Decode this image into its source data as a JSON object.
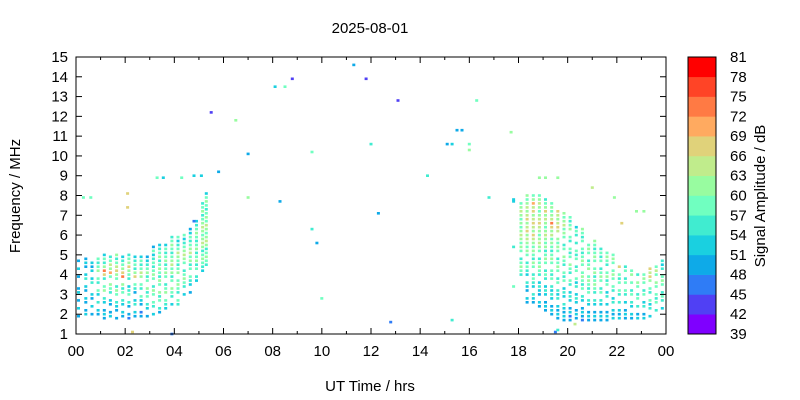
{
  "chart_data": {
    "type": "scatter",
    "title": "2025-08-01",
    "xlabel": "UT Time / hrs",
    "ylabel": "Frequency / MHz",
    "colorbar_label": "Signal Amplitude / dB",
    "xlim": [
      0,
      24
    ],
    "ylim": [
      1,
      15
    ],
    "x_tick_labels": [
      "00",
      "02",
      "04",
      "06",
      "08",
      "10",
      "12",
      "14",
      "16",
      "18",
      "20",
      "22",
      "00"
    ],
    "y_tick_labels": [
      "1",
      "2",
      "3",
      "4",
      "5",
      "6",
      "7",
      "8",
      "9",
      "10",
      "11",
      "12",
      "13",
      "14",
      "15"
    ],
    "colorbar": {
      "range": [
        39,
        81
      ],
      "step": 3,
      "tick_labels": [
        "39",
        "42",
        "45",
        "48",
        "51",
        "54",
        "57",
        "60",
        "63",
        "66",
        "69",
        "72",
        "75",
        "78",
        "81"
      ],
      "colors": [
        "#7f00ff",
        "#5040f4",
        "#2f7cf6",
        "#0eaae8",
        "#1ad0e0",
        "#40ecd0",
        "#70ffc0",
        "#98fca0",
        "#c0ec8c",
        "#e0d27a",
        "#ffaa60",
        "#ff7a44",
        "#ff4426",
        "#ff0000"
      ]
    },
    "column_freq_step": 0.2,
    "columns": [
      [
        0.1,
        1.9,
        [
          48,
          0,
          51,
          0,
          48,
          0,
          51,
          48,
          0,
          0,
          48,
          0,
          51,
          0,
          48
        ]
      ],
      [
        0.4,
        2.0,
        [
          51,
          48,
          0,
          48,
          51,
          0,
          48,
          51,
          0,
          54,
          51,
          0,
          48,
          51,
          48
        ]
      ],
      [
        0.65,
        2.0,
        [
          48,
          0,
          51,
          0,
          48,
          51,
          0,
          0,
          54,
          51,
          0,
          51,
          48,
          51
        ]
      ],
      [
        0.9,
        2.0,
        [
          48,
          51,
          0,
          54,
          0,
          51,
          57,
          0,
          54,
          57,
          0,
          60,
          57,
          54,
          57
        ]
      ],
      [
        1.15,
        1.8,
        [
          48,
          51,
          48,
          0,
          51,
          54,
          0,
          60,
          57,
          0,
          54,
          66,
          72,
          60,
          54,
          57,
          51
        ]
      ],
      [
        1.4,
        1.9,
        [
          51,
          48,
          0,
          48,
          51,
          0,
          54,
          57,
          60,
          0,
          57,
          69,
          60,
          63,
          57,
          54
        ]
      ],
      [
        1.65,
        1.8,
        [
          48,
          0,
          48,
          51,
          54,
          0,
          57,
          60,
          54,
          0,
          57,
          60,
          66,
          63,
          57,
          54,
          60
        ]
      ],
      [
        1.9,
        1.9,
        [
          48,
          51,
          0,
          51,
          54,
          0,
          57,
          54,
          60,
          0,
          72,
          66,
          60,
          57,
          54,
          51
        ]
      ],
      [
        2.15,
        1.8,
        [
          45,
          48,
          0,
          48,
          54,
          0,
          57,
          54,
          51,
          0,
          54,
          57,
          60,
          66,
          60,
          57,
          54
        ]
      ],
      [
        2.4,
        1.9,
        [
          48,
          51,
          0,
          54,
          51,
          0,
          48,
          54,
          57,
          0,
          66,
          60,
          54,
          57,
          54,
          51
        ]
      ],
      [
        2.65,
        1.9,
        [
          48,
          45,
          0,
          48,
          51,
          57,
          0,
          54,
          57,
          0,
          60,
          63,
          57,
          54,
          57,
          51
        ]
      ],
      [
        2.9,
        1.9,
        [
          48,
          0,
          51,
          54,
          0,
          57,
          54,
          60,
          0,
          57,
          54,
          60,
          57,
          54,
          51,
          48
        ]
      ],
      [
        3.15,
        2.0,
        [
          51,
          0,
          54,
          57,
          0,
          57,
          60,
          54,
          0,
          57,
          60,
          57,
          54,
          57,
          54,
          51,
          57,
          48
        ]
      ],
      [
        3.4,
        2.1,
        [
          48,
          54,
          0,
          57,
          54,
          60,
          0,
          57,
          60,
          54,
          57,
          60,
          57,
          54,
          60,
          57,
          54,
          51
        ]
      ],
      [
        3.65,
        2.3,
        [
          51,
          54,
          57,
          0,
          60,
          57,
          54,
          0,
          57,
          60,
          57,
          54,
          60,
          57,
          54,
          57,
          51
        ]
      ],
      [
        3.9,
        2.5,
        [
          51,
          0,
          54,
          57,
          60,
          0,
          57,
          54,
          60,
          57,
          63,
          60,
          57,
          54,
          57,
          60,
          57,
          54
        ]
      ],
      [
        4.15,
        2.5,
        [
          54,
          57,
          0,
          54,
          57,
          60,
          57,
          0,
          60,
          57,
          54,
          57,
          60,
          63,
          57,
          54,
          51,
          57
        ]
      ],
      [
        4.4,
        3.0,
        [
          51,
          0,
          54,
          57,
          60,
          57,
          54,
          0,
          57,
          60,
          63,
          60,
          57,
          54,
          51,
          57
        ]
      ],
      [
        4.65,
        3.1,
        [
          48,
          0,
          51,
          54,
          57,
          0,
          57,
          54,
          60,
          57,
          63,
          60,
          57,
          54,
          57,
          51,
          48
        ]
      ],
      [
        4.9,
        3.7,
        [
          51,
          54,
          0,
          57,
          54,
          60,
          57,
          54,
          60,
          57,
          54,
          57,
          60,
          57,
          54,
          51
        ]
      ],
      [
        5.15,
        4.2,
        [
          51,
          54,
          57,
          60,
          57,
          54,
          60,
          63,
          60,
          57,
          60,
          63,
          60,
          57,
          54,
          60,
          57,
          54
        ]
      ],
      [
        5.3,
        4.5,
        [
          54,
          57,
          60,
          57,
          54,
          60,
          63,
          60,
          57,
          60,
          63,
          57,
          60,
          57,
          54,
          57,
          60,
          57,
          51
        ]
      ],
      [
        18.1,
        4.0,
        [
          54,
          57,
          60,
          57,
          54,
          0,
          57,
          60,
          57,
          60,
          63,
          60,
          57,
          60,
          57,
          60,
          63,
          60,
          57
        ]
      ],
      [
        18.35,
        2.6,
        [
          48,
          51,
          0,
          48,
          51,
          54,
          0,
          51,
          54,
          57,
          54,
          0,
          57,
          60,
          57,
          60,
          63,
          60,
          66,
          63,
          60,
          66,
          63,
          60,
          63,
          60,
          57,
          60
        ]
      ],
      [
        18.6,
        2.6,
        [
          48,
          51,
          54,
          0,
          51,
          54,
          57,
          54,
          0,
          57,
          60,
          54,
          57,
          60,
          57,
          60,
          63,
          66,
          60,
          63,
          66,
          63,
          60,
          66,
          63,
          69,
          60,
          57
        ]
      ],
      [
        18.85,
        2.4,
        [
          48,
          51,
          0,
          48,
          51,
          54,
          51,
          0,
          54,
          57,
          60,
          57,
          54,
          0,
          57,
          60,
          63,
          60,
          57,
          60,
          63,
          66,
          63,
          60,
          57,
          60,
          63,
          60,
          57
        ]
      ],
      [
        19.1,
        2.2,
        [
          48,
          51,
          48,
          0,
          51,
          54,
          51,
          0,
          54,
          57,
          54,
          0,
          57,
          60,
          57,
          54,
          60,
          57,
          60,
          63,
          60,
          57,
          60,
          63,
          60,
          66,
          60,
          57,
          54
        ]
      ],
      [
        19.35,
        2.0,
        [
          48,
          51,
          48,
          0,
          51,
          54,
          51,
          54,
          0,
          57,
          54,
          57,
          0,
          57,
          60,
          57,
          54,
          57,
          60,
          57,
          63,
          60,
          66,
          72,
          63,
          60,
          57,
          60,
          57
        ]
      ],
      [
        19.6,
        1.8,
        [
          48,
          51,
          48,
          51,
          0,
          54,
          51,
          54,
          0,
          57,
          54,
          0,
          57,
          60,
          57,
          54,
          0,
          57,
          60,
          57,
          60,
          0,
          63,
          66,
          63,
          60,
          63,
          66
        ]
      ],
      [
        19.85,
        1.7,
        [
          48,
          51,
          48,
          51,
          54,
          0,
          51,
          54,
          51,
          0,
          57,
          54,
          57,
          0,
          54,
          57,
          60,
          0,
          57,
          54,
          0,
          57,
          60,
          57,
          63,
          60,
          57,
          60
        ]
      ],
      [
        20.1,
        1.7,
        [
          48,
          45,
          51,
          48,
          0,
          51,
          54,
          51,
          0,
          54,
          57,
          0,
          54,
          57,
          60,
          0,
          57,
          54,
          57,
          0,
          54,
          57,
          0,
          60,
          57,
          54,
          57
        ]
      ],
      [
        20.35,
        1.8,
        [
          48,
          51,
          48,
          0,
          51,
          54,
          51,
          0,
          54,
          51,
          57,
          0,
          57,
          54,
          0,
          57,
          54,
          57,
          0,
          54,
          0,
          54,
          57,
          51
        ]
      ],
      [
        20.6,
        1.7,
        [
          45,
          48,
          51,
          48,
          0,
          51,
          54,
          0,
          57,
          54,
          57,
          60,
          57,
          0,
          57,
          60,
          57,
          54,
          57,
          0,
          57,
          54,
          57,
          60
        ]
      ],
      [
        20.85,
        1.7,
        [
          48,
          51,
          48,
          0,
          51,
          54,
          0,
          57,
          54,
          57,
          60,
          57,
          0,
          60,
          57,
          54,
          0,
          57,
          60,
          57
        ]
      ],
      [
        21.1,
        1.7,
        [
          48,
          51,
          48,
          0,
          51,
          54,
          0,
          54,
          57,
          60,
          57,
          54,
          60,
          57,
          0,
          57,
          60,
          57,
          54,
          57,
          60
        ]
      ],
      [
        21.35,
        1.7,
        [
          48,
          51,
          48,
          0,
          51,
          54,
          0,
          57,
          54,
          0,
          57,
          60,
          57,
          54,
          0,
          57,
          54,
          57,
          54
        ]
      ],
      [
        21.6,
        1.7,
        [
          48,
          51,
          48,
          0,
          51,
          0,
          54,
          51,
          0,
          57,
          54,
          60,
          57,
          0,
          54,
          57,
          60,
          57
        ]
      ],
      [
        21.85,
        1.8,
        [
          51,
          48,
          51,
          0,
          54,
          51,
          0,
          54,
          57,
          0,
          57,
          60,
          57,
          0,
          57,
          60,
          57
        ]
      ],
      [
        22.1,
        1.8,
        [
          51,
          48,
          51,
          0,
          54,
          0,
          54,
          57,
          0,
          57,
          54,
          57,
          0,
          66
        ]
      ],
      [
        22.35,
        1.8,
        [
          48,
          51,
          48,
          0,
          51,
          0,
          54,
          57,
          0,
          57,
          54,
          0,
          57,
          54
        ]
      ],
      [
        22.6,
        1.8,
        [
          48,
          51,
          0,
          51,
          54,
          0,
          57,
          54,
          0,
          57,
          0,
          60,
          57
        ]
      ],
      [
        22.85,
        1.8,
        [
          51,
          48,
          0,
          54,
          0,
          57,
          54,
          0,
          57,
          60,
          0,
          54
        ]
      ],
      [
        23.1,
        1.8,
        [
          51,
          48,
          0,
          54,
          51,
          0,
          57,
          54,
          0,
          57,
          60,
          57
        ]
      ],
      [
        23.35,
        1.9,
        [
          51,
          0,
          54,
          51,
          57,
          0,
          54,
          57,
          0,
          60,
          66,
          63,
          66
        ]
      ],
      [
        23.6,
        2.2,
        [
          54,
          0,
          57,
          54,
          57,
          0,
          57,
          60,
          0,
          57,
          63,
          57
        ]
      ],
      [
        23.85,
        2.3,
        [
          51,
          0,
          54,
          57,
          54,
          0,
          57,
          60,
          57,
          0,
          54,
          51,
          54
        ]
      ]
    ],
    "points": [
      [
        0.3,
        7.9,
        57
      ],
      [
        0.6,
        7.9,
        57
      ],
      [
        2.1,
        8.1,
        66
      ],
      [
        2.1,
        7.4,
        66
      ],
      [
        3.3,
        8.9,
        57
      ],
      [
        3.55,
        8.9,
        51
      ],
      [
        4.3,
        8.9,
        57
      ],
      [
        4.8,
        9.0,
        51
      ],
      [
        5.1,
        9.0,
        51
      ],
      [
        4.8,
        6.7,
        45
      ],
      [
        5.8,
        9.2,
        48
      ],
      [
        5.5,
        12.2,
        42
      ],
      [
        6.5,
        11.8,
        60
      ],
      [
        7.0,
        10.1,
        48
      ],
      [
        7.0,
        7.9,
        60
      ],
      [
        8.1,
        13.5,
        51
      ],
      [
        8.5,
        13.5,
        57
      ],
      [
        8.8,
        13.9,
        42
      ],
      [
        8.3,
        7.7,
        48
      ],
      [
        9.6,
        10.2,
        57
      ],
      [
        9.6,
        6.3,
        54
      ],
      [
        9.8,
        5.6,
        48
      ],
      [
        10.0,
        2.8,
        57
      ],
      [
        11.3,
        14.6,
        48
      ],
      [
        11.8,
        13.9,
        42
      ],
      [
        12.0,
        10.6,
        54
      ],
      [
        12.3,
        7.1,
        48
      ],
      [
        12.8,
        1.6,
        45
      ],
      [
        13.1,
        12.8,
        42
      ],
      [
        14.3,
        9.0,
        54
      ],
      [
        15.1,
        10.6,
        48
      ],
      [
        15.3,
        10.6,
        51
      ],
      [
        15.5,
        11.3,
        48
      ],
      [
        15.7,
        11.3,
        48
      ],
      [
        16.0,
        10.6,
        57
      ],
      [
        16.0,
        10.3,
        60
      ],
      [
        16.3,
        12.8,
        57
      ],
      [
        16.8,
        7.9,
        54
      ],
      [
        17.7,
        11.2,
        60
      ],
      [
        15.3,
        1.7,
        54
      ],
      [
        3.9,
        1.0,
        45
      ],
      [
        2.3,
        1.1,
        66
      ],
      [
        19.5,
        1.1,
        45
      ],
      [
        17.8,
        7.8,
        51
      ],
      [
        17.8,
        7.7,
        51
      ],
      [
        17.8,
        5.4,
        54
      ],
      [
        17.8,
        3.4,
        57
      ],
      [
        18.85,
        8.9,
        60
      ],
      [
        19.1,
        8.9,
        60
      ],
      [
        19.6,
        8.9,
        60
      ],
      [
        21.0,
        8.4,
        63
      ],
      [
        22.2,
        6.6,
        66
      ],
      [
        21.9,
        7.9,
        60
      ],
      [
        22.8,
        7.2,
        60
      ],
      [
        23.1,
        7.2,
        60
      ],
      [
        20.3,
        1.5,
        63
      ],
      [
        19.6,
        1.2,
        54
      ]
    ]
  }
}
